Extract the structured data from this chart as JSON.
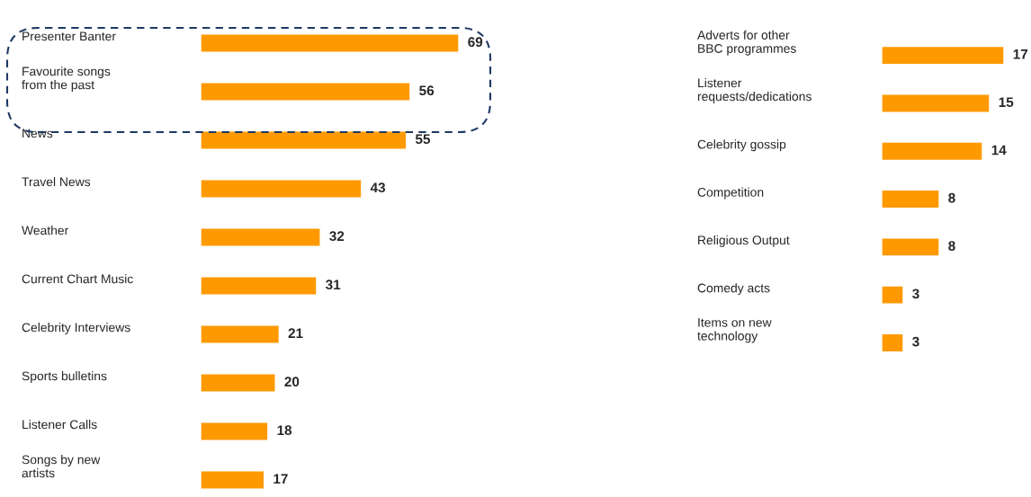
{
  "chart_data": [
    {
      "type": "bar",
      "orientation": "horizontal",
      "data_labels": true,
      "legend": false,
      "grid": false,
      "categories": [
        "Presenter Banter",
        "Favourite songs\nfrom the past",
        "News",
        "Travel News",
        "Weather",
        "Current Chart Music",
        "Celebrity Interviews",
        "Sports bulletins",
        "Listener Calls",
        "Songs by new\nartists"
      ],
      "values": [
        69,
        56,
        55,
        43,
        32,
        31,
        21,
        20,
        18,
        17
      ],
      "color": "#ff9900"
    },
    {
      "type": "bar",
      "orientation": "horizontal",
      "data_labels": true,
      "legend": false,
      "grid": false,
      "categories": [
        "Adverts for other\nBBC programmes",
        "Listener\nrequests/dedications",
        "Celebrity gossip",
        "Competition",
        "Religious Output",
        "Comedy acts",
        "Items on new\ntechnology"
      ],
      "values": [
        17,
        15,
        14,
        8,
        8,
        3,
        3
      ],
      "color": "#ff9900"
    }
  ]
}
